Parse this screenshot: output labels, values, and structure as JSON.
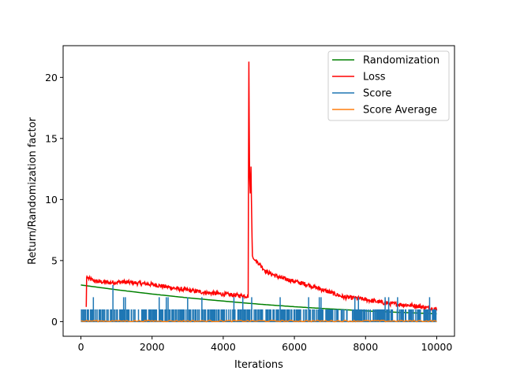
{
  "chart_data": {
    "type": "line",
    "title": "",
    "xlabel": "Iterations",
    "ylabel": "Return/Randomization factor",
    "xlim": [
      -500,
      10500
    ],
    "ylim": [
      -1.2,
      22.6
    ],
    "xticks": [
      0,
      2000,
      4000,
      6000,
      8000,
      10000
    ],
    "xtick_labels": [
      "0",
      "2000",
      "4000",
      "6000",
      "8000",
      "10000"
    ],
    "yticks": [
      0,
      5,
      10,
      15,
      20
    ],
    "ytick_labels": [
      "0",
      "5",
      "10",
      "15",
      "20"
    ],
    "grid": false,
    "legend_position": "top-right",
    "series": [
      {
        "name": "Randomization",
        "color": "#008000",
        "x": [
          0,
          1000,
          2000,
          3000,
          4000,
          5000,
          6000,
          7000,
          8000,
          9000,
          10000
        ],
        "y": [
          3.0,
          2.61,
          2.26,
          1.95,
          1.68,
          1.43,
          1.22,
          1.04,
          0.88,
          0.75,
          0.64
        ]
      },
      {
        "name": "Loss",
        "color": "#ff0000",
        "x": [
          150,
          160,
          170,
          200,
          400,
          800,
          1200,
          1600,
          2000,
          2400,
          2800,
          3200,
          3600,
          4000,
          4400,
          4700,
          4720,
          4740,
          4760,
          4780,
          4800,
          4820,
          4840,
          4860,
          4900,
          5000,
          5200,
          5600,
          6000,
          6400,
          6800,
          7000,
          7400,
          7800,
          8200,
          8600,
          9000,
          9400,
          9800,
          10000
        ],
        "y": [
          1.2,
          3.6,
          3.7,
          3.55,
          3.3,
          3.2,
          3.25,
          3.15,
          3.05,
          2.85,
          2.65,
          2.5,
          2.35,
          2.25,
          2.15,
          2.1,
          21.3,
          12.0,
          10.5,
          12.7,
          8.5,
          5.4,
          5.2,
          5.1,
          5.0,
          4.8,
          4.1,
          3.6,
          3.3,
          3.0,
          2.6,
          2.4,
          2.0,
          1.9,
          1.7,
          1.5,
          1.4,
          1.3,
          1.1,
          1.0
        ]
      },
      {
        "name": "Score",
        "color": "#1f77b4",
        "baseline": 0,
        "band_max": 1,
        "x_start": 0,
        "x_end": 10000,
        "spikes_x": [
          350,
          900,
          1200,
          1250,
          2200,
          2400,
          2450,
          3000,
          3400,
          4300,
          4550,
          4800,
          5600,
          6400,
          6700,
          6750,
          7700,
          7800,
          8550,
          8650,
          8900,
          9800
        ],
        "spikes_y": [
          2,
          3,
          2,
          2,
          2,
          2,
          2,
          2,
          2,
          2,
          2,
          2,
          2,
          2,
          2,
          2,
          2,
          2,
          2,
          2,
          2,
          2
        ]
      },
      {
        "name": "Score Average",
        "color": "#ff7f0e",
        "x": [
          0,
          10000
        ],
        "y": [
          0.05,
          0.05
        ]
      }
    ]
  }
}
